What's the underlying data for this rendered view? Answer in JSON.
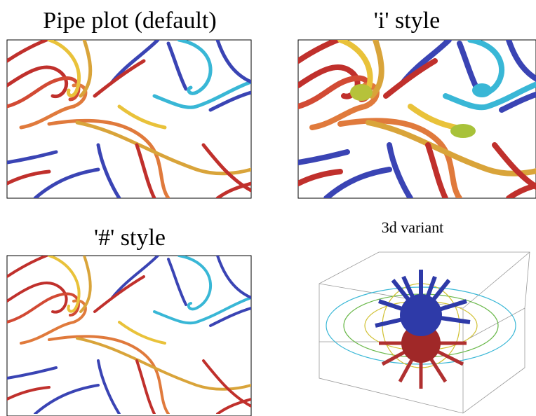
{
  "panels": [
    {
      "title": "Pipe plot (default)"
    },
    {
      "title": "'i' style"
    },
    {
      "title": "'#' style"
    },
    {
      "title": "3d variant"
    }
  ]
}
